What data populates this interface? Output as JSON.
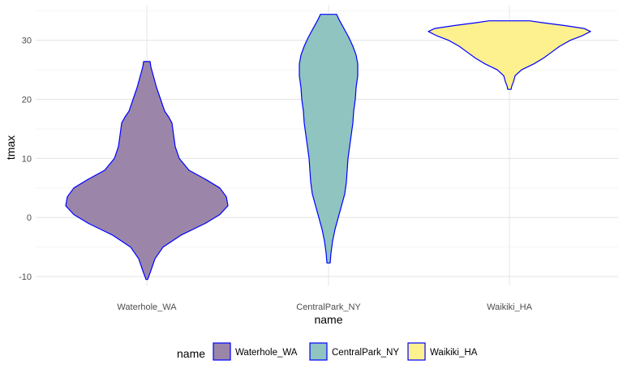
{
  "chart_data": {
    "type": "violin",
    "xlabel": "name",
    "ylabel": "tmax",
    "ylim": [
      -11.5,
      36
    ],
    "yticks": [
      -10,
      0,
      10,
      20,
      30
    ],
    "grid": true,
    "legend_position": "bottom",
    "legend_title": "name",
    "outline_color": "#0000ff",
    "categories": [
      "Waterhole_WA",
      "CentralPark_NY",
      "Waikiki_HA"
    ],
    "series": [
      {
        "name": "Waterhole_WA",
        "color": "#9b86aa",
        "min": -10.5,
        "max": 26.4,
        "profile": [
          [
            -10.5,
            0.01
          ],
          [
            -9,
            0.05
          ],
          [
            -7,
            0.1
          ],
          [
            -5,
            0.2
          ],
          [
            -3,
            0.42
          ],
          [
            -1,
            0.72
          ],
          [
            0.5,
            0.9
          ],
          [
            2,
            1.0
          ],
          [
            3.5,
            0.98
          ],
          [
            5,
            0.9
          ],
          [
            6.5,
            0.72
          ],
          [
            8,
            0.52
          ],
          [
            10,
            0.4
          ],
          [
            12,
            0.35
          ],
          [
            14,
            0.33
          ],
          [
            16,
            0.31
          ],
          [
            17,
            0.27
          ],
          [
            18,
            0.22
          ],
          [
            20,
            0.17
          ],
          [
            22,
            0.12
          ],
          [
            24,
            0.08
          ],
          [
            25.5,
            0.05
          ],
          [
            26.4,
            0.04
          ]
        ]
      },
      {
        "name": "CentralPark_NY",
        "color": "#8fc4c0",
        "min": -7.7,
        "max": 34.4,
        "profile": [
          [
            -7.7,
            0.02
          ],
          [
            -6,
            0.03
          ],
          [
            -4,
            0.05
          ],
          [
            -2,
            0.08
          ],
          [
            0,
            0.12
          ],
          [
            2,
            0.16
          ],
          [
            4,
            0.2
          ],
          [
            6,
            0.22
          ],
          [
            8,
            0.23
          ],
          [
            10,
            0.24
          ],
          [
            12,
            0.26
          ],
          [
            14,
            0.28
          ],
          [
            16,
            0.3
          ],
          [
            18,
            0.31
          ],
          [
            20,
            0.33
          ],
          [
            22,
            0.34
          ],
          [
            24,
            0.36
          ],
          [
            26,
            0.36
          ],
          [
            27.5,
            0.34
          ],
          [
            29,
            0.3
          ],
          [
            30.5,
            0.25
          ],
          [
            32,
            0.19
          ],
          [
            33.5,
            0.13
          ],
          [
            34.4,
            0.1
          ]
        ]
      },
      {
        "name": "Waikiki_HA",
        "color": "#fdf08f",
        "min": 21.7,
        "max": 33.3,
        "profile": [
          [
            21.7,
            0.02
          ],
          [
            22.3,
            0.03
          ],
          [
            23,
            0.05
          ],
          [
            24,
            0.07
          ],
          [
            25,
            0.15
          ],
          [
            26,
            0.3
          ],
          [
            27,
            0.42
          ],
          [
            28,
            0.52
          ],
          [
            29,
            0.62
          ],
          [
            30,
            0.75
          ],
          [
            30.8,
            0.9
          ],
          [
            31.5,
            1.0
          ],
          [
            32,
            0.92
          ],
          [
            32.5,
            0.68
          ],
          [
            33,
            0.4
          ],
          [
            33.3,
            0.25
          ]
        ]
      }
    ]
  }
}
